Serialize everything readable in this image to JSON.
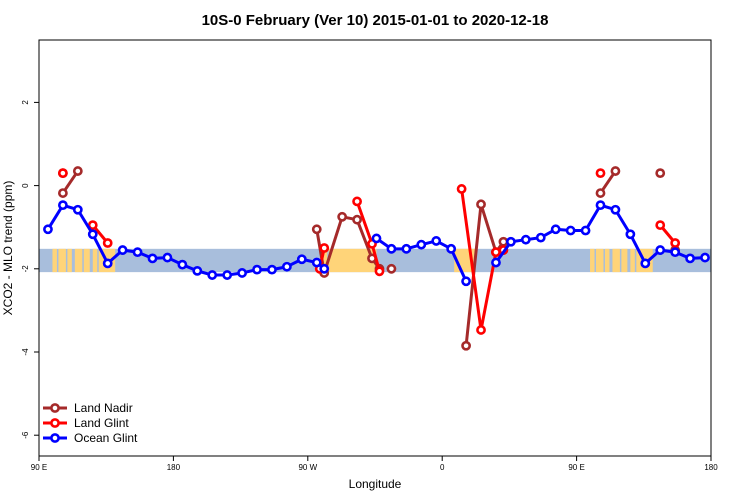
{
  "chart_data": {
    "type": "line",
    "title": "10S-0 February (Ver 10)   2015-01-01 to 2020-12-18",
    "xlabel": "Longitude",
    "ylabel": "XCO2 - MLO trend (ppm)",
    "xlim": [
      90,
      540
    ],
    "ylim": [
      -6.5,
      3.5
    ],
    "x_ticks": [
      {
        "value": 90,
        "label": "90 E"
      },
      {
        "value": 180,
        "label": "180"
      },
      {
        "value": 270,
        "label": "90 W"
      },
      {
        "value": 360,
        "label": "0"
      },
      {
        "value": 450,
        "label": "90 E"
      },
      {
        "value": 540,
        "label": "180"
      }
    ],
    "y_ticks": [
      {
        "value": 2,
        "label": "2"
      },
      {
        "value": 0,
        "label": "0"
      },
      {
        "value": -2,
        "label": "-2"
      },
      {
        "value": -4,
        "label": "-4"
      },
      {
        "value": -6,
        "label": "-6"
      }
    ],
    "band": {
      "ymin": -2.08,
      "ymax": -1.52,
      "color": "#a8bedc",
      "land_color": "#ffd479"
    },
    "legend_position": "bottom-left",
    "series": [
      {
        "name": "Land Nadir",
        "color": "#a52a2a",
        "segments": [
          [
            [
              106,
              -0.18
            ],
            [
              116,
              0.35
            ]
          ],
          [
            [
              276,
              -1.05
            ],
            [
              281,
              -2.1
            ],
            [
              293,
              -0.75
            ],
            [
              303,
              -0.82
            ],
            [
              313,
              -1.75
            ],
            [
              318,
              -2.0
            ]
          ],
          [
            [
              376,
              -3.85
            ],
            [
              386,
              -0.45
            ],
            [
              396,
              -1.6
            ],
            [
              401,
              -1.35
            ]
          ],
          [
            [
              466,
              -0.18
            ],
            [
              476,
              0.35
            ]
          ]
        ],
        "points": [
          [
            106,
            0.3
          ],
          [
            326,
            -2.0
          ],
          [
            506,
            0.3
          ],
          [
            516,
            -1.55
          ]
        ]
      },
      {
        "name": "Land Glint",
        "color": "#ff0000",
        "segments": [
          [
            [
              126,
              -0.95
            ],
            [
              136,
              -1.38
            ]
          ],
          [
            [
              278,
              -2.0
            ],
            [
              281,
              -1.5
            ]
          ],
          [
            [
              303,
              -0.38
            ],
            [
              313,
              -1.4
            ],
            [
              318,
              -2.06
            ]
          ],
          [
            [
              373,
              -0.08
            ],
            [
              386,
              -3.47
            ],
            [
              396,
              -1.6
            ],
            [
              401,
              -1.55
            ]
          ],
          [
            [
              506,
              -0.95
            ],
            [
              516,
              -1.38
            ]
          ]
        ],
        "points": [
          [
            106,
            0.3
          ],
          [
            466,
            0.3
          ]
        ]
      },
      {
        "name": "Ocean Glint",
        "color": "#0000ff",
        "segments": [
          [
            [
              96,
              -1.05
            ],
            [
              106,
              -0.47
            ],
            [
              116,
              -0.58
            ],
            [
              126,
              -1.17
            ],
            [
              136,
              -1.87
            ],
            [
              146,
              -1.55
            ],
            [
              156,
              -1.6
            ],
            [
              166,
              -1.75
            ],
            [
              176,
              -1.73
            ],
            [
              186,
              -1.9
            ],
            [
              196,
              -2.05
            ],
            [
              206,
              -2.15
            ],
            [
              216,
              -2.15
            ],
            [
              226,
              -2.1
            ],
            [
              236,
              -2.02
            ],
            [
              246,
              -2.02
            ],
            [
              256,
              -1.95
            ],
            [
              266,
              -1.77
            ],
            [
              276,
              -1.85
            ],
            [
              281,
              -2.0
            ]
          ],
          [
            [
              316,
              -1.27
            ],
            [
              326,
              -1.52
            ],
            [
              336,
              -1.52
            ],
            [
              346,
              -1.42
            ],
            [
              356,
              -1.33
            ],
            [
              366,
              -1.52
            ],
            [
              376,
              -2.3
            ]
          ],
          [
            [
              396,
              -1.85
            ],
            [
              406,
              -1.35
            ],
            [
              416,
              -1.3
            ],
            [
              426,
              -1.25
            ],
            [
              436,
              -1.05
            ],
            [
              446,
              -1.08
            ],
            [
              456,
              -1.08
            ],
            [
              466,
              -0.47
            ],
            [
              476,
              -0.58
            ],
            [
              486,
              -1.17
            ],
            [
              496,
              -1.87
            ],
            [
              506,
              -1.55
            ],
            [
              516,
              -1.6
            ],
            [
              526,
              -1.75
            ],
            [
              536,
              -1.73
            ]
          ]
        ],
        "points": []
      }
    ]
  }
}
